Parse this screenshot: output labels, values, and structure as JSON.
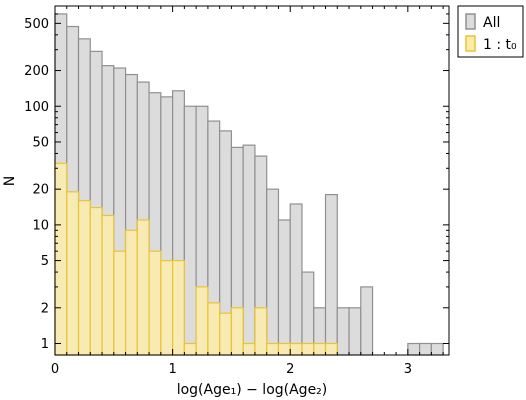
{
  "chart_data": {
    "type": "bar",
    "title": "",
    "xlabel": "log(Age₁) − log(Age₂)",
    "ylabel": "N",
    "xlim": [
      0,
      3.35
    ],
    "ylim": [
      0.8,
      700
    ],
    "yscale": "log",
    "bin_width": 0.1,
    "x_ticks": [
      0,
      1,
      2,
      3
    ],
    "x_tick_labels": [
      "0",
      "1",
      "2",
      "3"
    ],
    "y_ticks": [
      1,
      2,
      5,
      10,
      20,
      50,
      100,
      200,
      500
    ],
    "y_tick_labels": [
      "1",
      "2",
      "5",
      "10",
      "20",
      "50",
      "100",
      "200",
      "500"
    ],
    "legend_position": "outside-right-top",
    "series": [
      {
        "name": "All",
        "color": "#dcdcdc",
        "edge": "#909090",
        "bin_starts": [
          0.0,
          0.1,
          0.2,
          0.3,
          0.4,
          0.5,
          0.6,
          0.7,
          0.8,
          0.9,
          1.0,
          1.1,
          1.2,
          1.3,
          1.4,
          1.5,
          1.6,
          1.7,
          1.8,
          1.9,
          2.0,
          2.1,
          2.2,
          2.3,
          2.4,
          2.5,
          2.6,
          3.0,
          3.1,
          3.2
        ],
        "values": [
          600,
          470,
          370,
          290,
          220,
          210,
          185,
          160,
          130,
          120,
          135,
          100,
          100,
          75,
          62,
          45,
          47,
          38,
          20,
          11,
          15,
          4,
          2,
          18,
          2,
          2,
          3,
          1,
          1,
          1
        ]
      },
      {
        "name": "1 : t₀",
        "color": "#fbecaa",
        "edge": "#e9c535",
        "bin_starts": [
          0.0,
          0.1,
          0.2,
          0.3,
          0.4,
          0.5,
          0.6,
          0.7,
          0.8,
          0.9,
          1.0,
          1.1,
          1.2,
          1.3,
          1.4,
          1.5,
          1.6,
          1.7,
          1.8,
          1.9,
          2.0,
          2.1,
          2.2,
          2.3
        ],
        "values": [
          33,
          19,
          16,
          14,
          12,
          6,
          9,
          11,
          6,
          5,
          5,
          1,
          3,
          2.2,
          1.8,
          2,
          1,
          2,
          1,
          1,
          1,
          1,
          1,
          1
        ]
      }
    ]
  }
}
